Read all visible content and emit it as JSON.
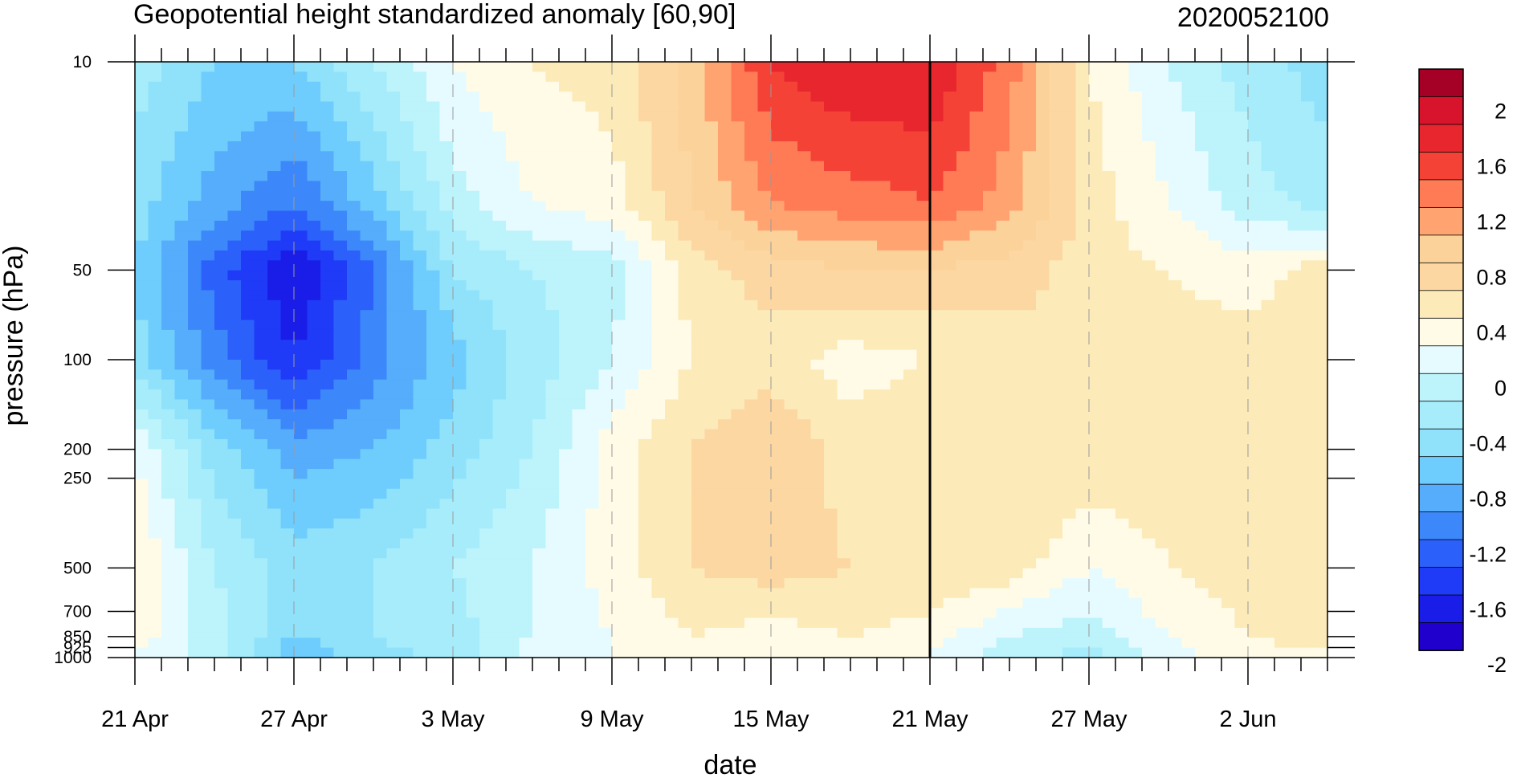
{
  "header": {
    "title_left": "Geopotential height standardized anomaly [60,90]",
    "title_right": "2020052100"
  },
  "chart_data": {
    "type": "heatmap",
    "subtype": "filled-contour time-pressure cross section",
    "title": "Geopotential height standardized anomaly [60,90]",
    "date_label": "2020052100",
    "xlabel": "date",
    "ylabel": "pressure (hPa)",
    "y_scale": "log",
    "y_reversed": true,
    "x_tick_labels": [
      "21 Apr",
      "27 Apr",
      "3 May",
      "9 May",
      "15 May",
      "21 May",
      "27 May",
      "2 Jun"
    ],
    "x_ticks_days_from_start": [
      0,
      6,
      12,
      18,
      24,
      30,
      36,
      42
    ],
    "x_range_days": [
      0,
      45
    ],
    "y_tick_labels": [
      "10",
      "50",
      "100",
      "200",
      "250",
      "500",
      "700",
      "850",
      "925",
      "1000"
    ],
    "y_ticks": [
      10,
      50,
      100,
      200,
      250,
      500,
      700,
      850,
      925,
      1000
    ],
    "vertical_marker": "21 May",
    "grid": "dashed vertical lines at labeled dates",
    "colorbar": {
      "placement": "right",
      "levels": [
        -2,
        -1.8,
        -1.6,
        -1.4,
        -1.2,
        -1.0,
        -0.8,
        -0.6,
        -0.4,
        -0.2,
        0,
        0.2,
        0.4,
        0.6,
        0.8,
        1.0,
        1.2,
        1.4,
        1.6,
        1.8,
        2
      ],
      "labels": [
        "2",
        "1.6",
        "1.2",
        "0.8",
        "0.4",
        "0",
        "-0.4",
        "-0.8",
        "-1.2",
        "-1.6",
        "-2"
      ],
      "colors_top_to_bottom": [
        "#a50026",
        "#d7142b",
        "#e8262e",
        "#f44336",
        "#ff7b55",
        "#ffa470",
        "#fcd29b",
        "#fcd7a2",
        "#fceab8",
        "#fffbe6",
        "#e6fbff",
        "#bdf3fb",
        "#a6ecfb",
        "#90e2fb",
        "#6ecdfc",
        "#56adfc",
        "#3c88fa",
        "#2c60fb",
        "#1f3bf8",
        "#1a1ce8",
        "#2000cc"
      ]
    },
    "times": [
      0,
      3,
      6,
      9,
      12,
      15,
      18,
      21,
      24,
      27,
      30,
      33,
      36,
      39,
      42,
      45
    ],
    "pressure_levels": [
      10,
      30,
      50,
      100,
      200,
      500,
      850,
      1000
    ],
    "values": [
      [
        -0.3,
        -0.6,
        -0.6,
        -0.2,
        0.2,
        0.4,
        0.5,
        0.9,
        1.6,
        1.8,
        1.8,
        1.3,
        0.4,
        0.0,
        -0.3,
        -0.5
      ],
      [
        -0.5,
        -0.9,
        -1.2,
        -0.7,
        -0.1,
        0.2,
        0.3,
        0.8,
        1.2,
        1.3,
        1.4,
        1.1,
        0.5,
        0.2,
        -0.1,
        -0.3
      ],
      [
        -0.6,
        -1.3,
        -1.8,
        -1.2,
        -0.4,
        -0.2,
        -0.1,
        0.5,
        0.7,
        0.8,
        0.8,
        0.7,
        0.5,
        0.4,
        0.3,
        0.5
      ],
      [
        -0.5,
        -1.1,
        -1.6,
        -1.1,
        -0.7,
        -0.3,
        0.0,
        0.4,
        0.5,
        0.3,
        0.4,
        0.5,
        0.6,
        0.5,
        0.5,
        0.6
      ],
      [
        0.2,
        -0.5,
        -0.9,
        -0.8,
        -0.5,
        -0.2,
        0.3,
        0.6,
        0.8,
        0.5,
        0.6,
        0.6,
        0.6,
        0.5,
        0.5,
        0.6
      ],
      [
        0.4,
        -0.2,
        -0.5,
        -0.4,
        -0.2,
        0.0,
        0.3,
        0.6,
        0.7,
        0.6,
        0.6,
        0.5,
        0.2,
        0.4,
        0.5,
        0.6
      ],
      [
        0.3,
        -0.1,
        -0.6,
        -0.4,
        -0.3,
        0.0,
        0.2,
        0.4,
        0.3,
        0.4,
        0.3,
        0.0,
        -0.1,
        0.2,
        0.4,
        0.5
      ],
      [
        0.2,
        -0.1,
        -0.8,
        -0.5,
        -0.3,
        0.1,
        0.2,
        0.2,
        0.2,
        0.3,
        0.2,
        -0.1,
        -0.3,
        0.1,
        0.3,
        0.3
      ]
    ]
  }
}
